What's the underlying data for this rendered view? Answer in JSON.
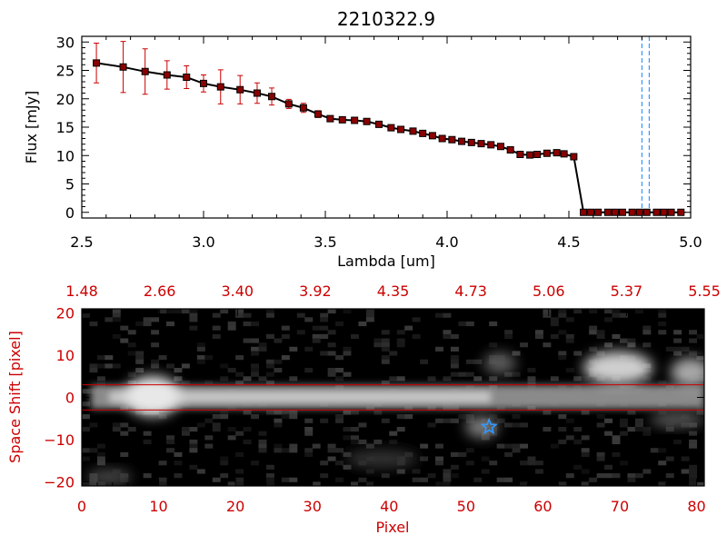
{
  "chart_data": [
    {
      "type": "line",
      "title": "2210322.9",
      "xlabel": "Lambda [um]",
      "ylabel": "Flux [mJy]",
      "xlim": [
        2.5,
        5.0
      ],
      "ylim": [
        -1,
        31
      ],
      "xticks": [
        "2.5",
        "3.0",
        "3.5",
        "4.0",
        "4.5",
        "5.0"
      ],
      "yticks": [
        "0",
        "5",
        "10",
        "15",
        "20",
        "25",
        "30"
      ],
      "grid": false,
      "colors": {
        "line": "#000000",
        "marker": "#8b0000",
        "errorbar": "#cc0000",
        "vline": "#3399ff",
        "zeroline": "#cc0000"
      },
      "series": [
        {
          "x": [
            2.56,
            2.67,
            2.76,
            2.85,
            2.93,
            3.0,
            3.07,
            3.15,
            3.22,
            3.28,
            3.35,
            3.41,
            3.47,
            3.52,
            3.57,
            3.62,
            3.67,
            3.72,
            3.77,
            3.81,
            3.86,
            3.9,
            3.94,
            3.98,
            4.02,
            4.06,
            4.1,
            4.14,
            4.18,
            4.22,
            4.26,
            4.3,
            4.34,
            4.37,
            4.41,
            4.45,
            4.48,
            4.52,
            4.56,
            4.59,
            4.62,
            4.66,
            4.69,
            4.72,
            4.76,
            4.79,
            4.82,
            4.86,
            4.89,
            4.92,
            4.96
          ],
          "y": [
            26.3,
            25.6,
            24.8,
            24.2,
            23.8,
            22.7,
            22.1,
            21.6,
            21.0,
            20.4,
            19.1,
            18.4,
            17.3,
            16.5,
            16.3,
            16.2,
            16.0,
            15.5,
            14.9,
            14.6,
            14.3,
            13.9,
            13.5,
            13.0,
            12.8,
            12.5,
            12.3,
            12.1,
            11.9,
            11.6,
            11.0,
            10.2,
            10.1,
            10.2,
            10.4,
            10.5,
            10.3,
            9.8,
            0.0,
            0.0,
            0.0,
            0.0,
            0.0,
            0.0,
            0.0,
            0.0,
            0.0,
            0.0,
            0.0,
            0.0,
            0.0
          ],
          "yerr": [
            3.5,
            4.5,
            4.0,
            2.5,
            2.0,
            1.5,
            3.0,
            2.5,
            1.8,
            1.5,
            0.8,
            0.8,
            0.6,
            0.5,
            0.5,
            0.5,
            0.5,
            0.5,
            0.5,
            0.5,
            0.5,
            0.5,
            0.5,
            0.5,
            0.5,
            0.5,
            0.5,
            0.5,
            0.5,
            0.5,
            0.5,
            0.5,
            0.5,
            0.5,
            0.5,
            0.5,
            0.5,
            0.5,
            0.5,
            0.5,
            0.5,
            0.5,
            0.5,
            0.5,
            0.5,
            0.5,
            0.5,
            0.5,
            0.5,
            0.5,
            0.5
          ]
        }
      ],
      "vlines": [
        4.8,
        4.83
      ],
      "hline": 0
    },
    {
      "type": "heatmap",
      "xlabel": "Pixel",
      "ylabel": "Space Shift [pixel]",
      "xlim": [
        0,
        81
      ],
      "ylim": [
        -21,
        21
      ],
      "xticks": [
        "0",
        "10",
        "20",
        "30",
        "40",
        "50",
        "60",
        "70",
        "80"
      ],
      "yticks": [
        "−20",
        "−10",
        "0",
        "10",
        "20"
      ],
      "top_axis_ticks": [
        "1.48",
        "2.66",
        "3.40",
        "3.92",
        "4.35",
        "4.73",
        "5.06",
        "5.37",
        "5.55"
      ],
      "colormap": "grayscale",
      "colors": {
        "axis": "#cc0000",
        "aperture": "#cc0000",
        "marker": "#3399ff"
      },
      "aperture_lines": [
        3,
        -3
      ],
      "star_marker": {
        "x": 53,
        "y": -7,
        "shape": "star"
      }
    }
  ]
}
